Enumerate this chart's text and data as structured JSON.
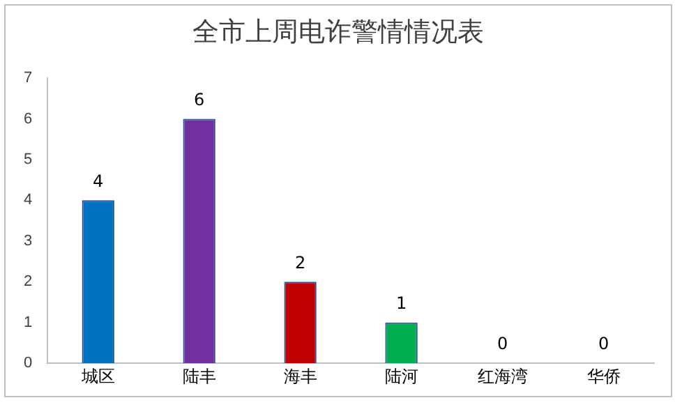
{
  "chart_data": {
    "type": "bar",
    "title": "全市上周电诈警情情况表",
    "categories": [
      "城区",
      "陆丰",
      "海丰",
      "陆河",
      "红海湾",
      "华侨"
    ],
    "values": [
      4,
      6,
      2,
      1,
      0,
      0
    ],
    "colors": [
      "#0070c0",
      "#7030a0",
      "#c00000",
      "#00b050",
      "#00b0f0",
      "#ffc000"
    ],
    "ylim": [
      0,
      7
    ],
    "yticks": [
      0,
      1,
      2,
      3,
      4,
      5,
      6,
      7
    ],
    "grid": false,
    "data_labels": true
  }
}
